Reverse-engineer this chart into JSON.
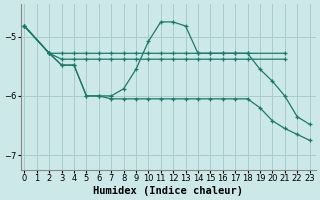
{
  "background_color": "#cce8e8",
  "grid_color": "#aacccc",
  "line_color": "#1a7a6a",
  "series": [
    {
      "x": [
        0,
        2,
        3,
        4,
        5,
        6,
        7,
        8,
        9,
        10,
        11,
        12,
        13,
        14,
        15,
        16,
        17,
        18,
        21
      ],
      "y": [
        -4.82,
        -5.28,
        -5.28,
        -5.28,
        -5.28,
        -5.28,
        -5.28,
        -5.28,
        -5.28,
        -5.28,
        -5.28,
        -5.28,
        -5.28,
        -5.28,
        -5.28,
        -5.28,
        -5.28,
        -5.28,
        -5.28
      ]
    },
    {
      "x": [
        0,
        2,
        3,
        4,
        5,
        6,
        7,
        8,
        9,
        10,
        11,
        12,
        13,
        14,
        15,
        16,
        17,
        18,
        21
      ],
      "y": [
        -4.82,
        -5.28,
        -5.38,
        -5.38,
        -5.38,
        -5.38,
        -5.38,
        -5.38,
        -5.38,
        -5.38,
        -5.38,
        -5.38,
        -5.38,
        -5.38,
        -5.38,
        -5.38,
        -5.38,
        -5.38,
        -5.38
      ]
    },
    {
      "x": [
        0,
        2,
        3,
        4,
        5,
        6,
        7,
        8,
        9,
        10,
        11,
        12,
        13,
        14,
        15,
        16,
        17,
        18,
        19,
        20,
        21,
        22,
        23
      ],
      "y": [
        -4.82,
        -5.28,
        -5.48,
        -5.48,
        -6.0,
        -6.0,
        -6.0,
        -5.88,
        -5.55,
        -5.08,
        -4.75,
        -4.75,
        -4.82,
        -5.28,
        -5.28,
        -5.28,
        -5.28,
        -5.28,
        -5.55,
        -5.75,
        -6.0,
        -6.35,
        -6.48
      ]
    },
    {
      "x": [
        0,
        2,
        3,
        4,
        5,
        6,
        7,
        8,
        9,
        10,
        11,
        12,
        13,
        14,
        15,
        16,
        17,
        18,
        19,
        20,
        21,
        22,
        23
      ],
      "y": [
        -4.82,
        -5.28,
        -5.48,
        -5.48,
        -6.0,
        -6.0,
        -6.05,
        -6.05,
        -6.05,
        -6.05,
        -6.05,
        -6.05,
        -6.05,
        -6.05,
        -6.05,
        -6.05,
        -6.05,
        -6.05,
        -6.2,
        -6.42,
        -6.55,
        -6.65,
        -6.75
      ]
    }
  ],
  "xlim": [
    -0.3,
    23.5
  ],
  "ylim": [
    -7.25,
    -4.45
  ],
  "yticks": [
    -7,
    -6,
    -5
  ],
  "xticks": [
    0,
    1,
    2,
    3,
    4,
    5,
    6,
    7,
    8,
    9,
    10,
    11,
    12,
    13,
    14,
    15,
    16,
    17,
    18,
    19,
    20,
    21,
    22,
    23
  ],
  "xlabel": "Humidex (Indice chaleur)",
  "xlabel_fontsize": 7.5,
  "tick_fontsize": 6.0
}
